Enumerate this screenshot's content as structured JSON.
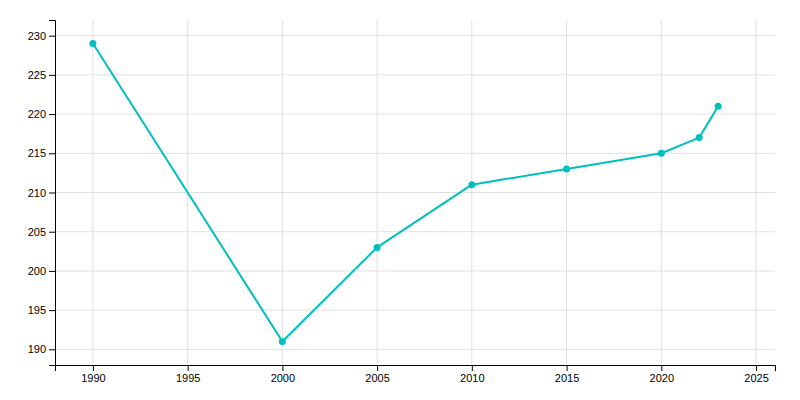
{
  "chart_data": {
    "type": "line",
    "x": [
      1990,
      2000,
      2005,
      2010,
      2015,
      2020,
      2022,
      2023
    ],
    "values": [
      229,
      191,
      203,
      211,
      213,
      215,
      217,
      221
    ],
    "color": "#00BFBF",
    "marker": "circle",
    "xlim": [
      1988,
      2026
    ],
    "ylim": [
      188,
      232
    ],
    "xticks": [
      1990,
      1995,
      2000,
      2005,
      2010,
      2015,
      2020,
      2025
    ],
    "yticks": [
      190,
      195,
      200,
      205,
      210,
      215,
      220,
      225,
      230
    ],
    "grid": true
  }
}
